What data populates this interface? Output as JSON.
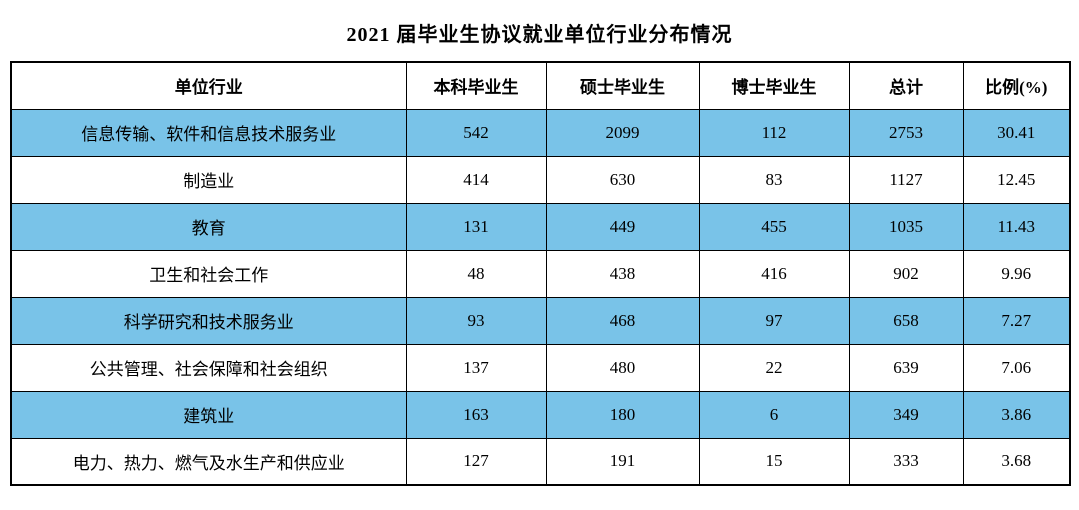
{
  "title": "2021 届毕业生协议就业单位行业分布情况",
  "colors": {
    "row_highlight": "#79c3e8",
    "border": "#000000",
    "text": "#000000",
    "background": "#ffffff"
  },
  "chart_data": {
    "type": "table",
    "title": "2021 届毕业生协议就业单位行业分布情况",
    "columns": [
      "单位行业",
      "本科毕业生",
      "硕士毕业生",
      "博士毕业生",
      "总计",
      "比例(%)"
    ],
    "rows": [
      [
        "信息传输、软件和信息技术服务业",
        "542",
        "2099",
        "112",
        "2753",
        "30.41"
      ],
      [
        "制造业",
        "414",
        "630",
        "83",
        "1127",
        "12.45"
      ],
      [
        "教育",
        "131",
        "449",
        "455",
        "1035",
        "11.43"
      ],
      [
        "卫生和社会工作",
        "48",
        "438",
        "416",
        "902",
        "9.96"
      ],
      [
        "科学研究和技术服务业",
        "93",
        "468",
        "97",
        "658",
        "7.27"
      ],
      [
        "公共管理、社会保障和社会组织",
        "137",
        "480",
        "22",
        "639",
        "7.06"
      ],
      [
        "建筑业",
        "163",
        "180",
        "6",
        "349",
        "3.86"
      ],
      [
        "电力、热力、燃气及水生产和供应业",
        "127",
        "191",
        "15",
        "333",
        "3.68"
      ]
    ],
    "highlighted_rows": [
      0,
      2,
      4,
      6
    ],
    "legend": "none",
    "grid": true
  }
}
